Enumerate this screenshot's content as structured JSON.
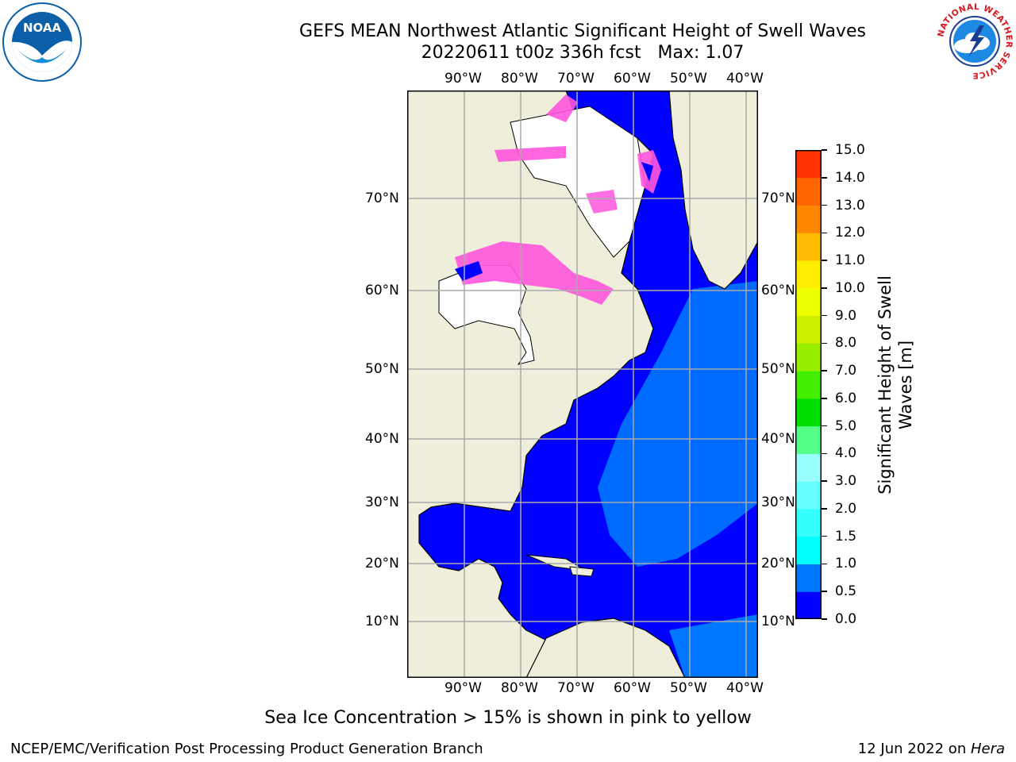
{
  "header": {
    "title": "GEFS MEAN Northwest Atlantic Significant Height of Swell Waves",
    "subtitle": "20220611 t00z 336h fcst   Max: 1.07"
  },
  "logos": {
    "noaa": {
      "text": "NOAA",
      "icon": "noaa-logo-icon",
      "color": "#0a5fa8"
    },
    "nws": {
      "ring_text": "NATIONAL WEATHER SERVICE",
      "icon": "nws-logo-icon",
      "color": "#d71920"
    }
  },
  "map": {
    "lon_labels": [
      "90°W",
      "80°W",
      "70°W",
      "60°W",
      "50°W",
      "40°W"
    ],
    "lat_labels": [
      "70°N",
      "60°N",
      "50°N",
      "40°N",
      "30°N",
      "20°N",
      "10°N"
    ],
    "land_color": "#efeedb",
    "ocean_color": "#0000ff",
    "ice_color": "#ff55dd"
  },
  "colorbar": {
    "title_line1": "Significant Height of Swell",
    "title_line2": "Waves [m]",
    "labels": [
      "0.0",
      "0.5",
      "1.0",
      "1.5",
      "2.0",
      "3.0",
      "4.0",
      "5.0",
      "6.0",
      "7.0",
      "8.0",
      "9.0",
      "10.0",
      "11.0",
      "12.0",
      "13.0",
      "14.0",
      "15.0"
    ],
    "colors": [
      "#0000ff",
      "#0077ff",
      "#00ffff",
      "#33ffff",
      "#66ffff",
      "#99ffff",
      "#55ff88",
      "#00dd00",
      "#44ee00",
      "#99ee00",
      "#ccee00",
      "#eeff00",
      "#ffee00",
      "#ffbb00",
      "#ff8800",
      "#ff6600",
      "#ff3300",
      "#ff0000"
    ]
  },
  "note": "Sea Ice Concentration > 15% is shown in pink to yellow",
  "footer": {
    "left": "NCEP/EMC/Verification Post Processing Product Generation Branch",
    "right_date": "12 Jun 2022 on ",
    "right_host": "Hera"
  }
}
